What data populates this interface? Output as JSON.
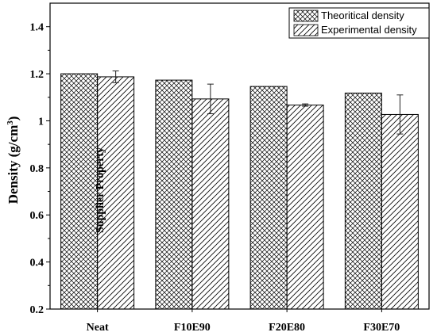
{
  "chart_data": {
    "type": "bar",
    "categories": [
      "Neat",
      "F10E90",
      "F20E80",
      "F30E70"
    ],
    "series": [
      {
        "name": "Theoritical density",
        "pattern": "crosshatch",
        "values": [
          1.2,
          1.173,
          1.146,
          1.118
        ],
        "errors": [
          null,
          null,
          null,
          null
        ]
      },
      {
        "name": "Experimental density",
        "pattern": "diagonal",
        "values": [
          1.187,
          1.093,
          1.067,
          1.027
        ],
        "errors": [
          0.025,
          0.063,
          0.005,
          0.083
        ]
      }
    ],
    "title": "",
    "xlabel": "",
    "ylabel_main": "Density (g/cm",
    "ylabel_sup": "3",
    "ylabel_close": ")",
    "ylim": [
      0.2,
      1.5
    ],
    "yticks": [
      "0.2",
      "0.4",
      "0.6",
      "0.8",
      "1",
      "1.2",
      "1.4"
    ],
    "ytick_values": [
      0.2,
      0.4,
      0.6,
      0.8,
      1.0,
      1.2,
      1.4
    ],
    "annotation": "Supplier Property",
    "legend_position": "top-right",
    "grid": false,
    "colors": {
      "bar_fill": "#ffffff",
      "stroke": "#000000"
    }
  }
}
